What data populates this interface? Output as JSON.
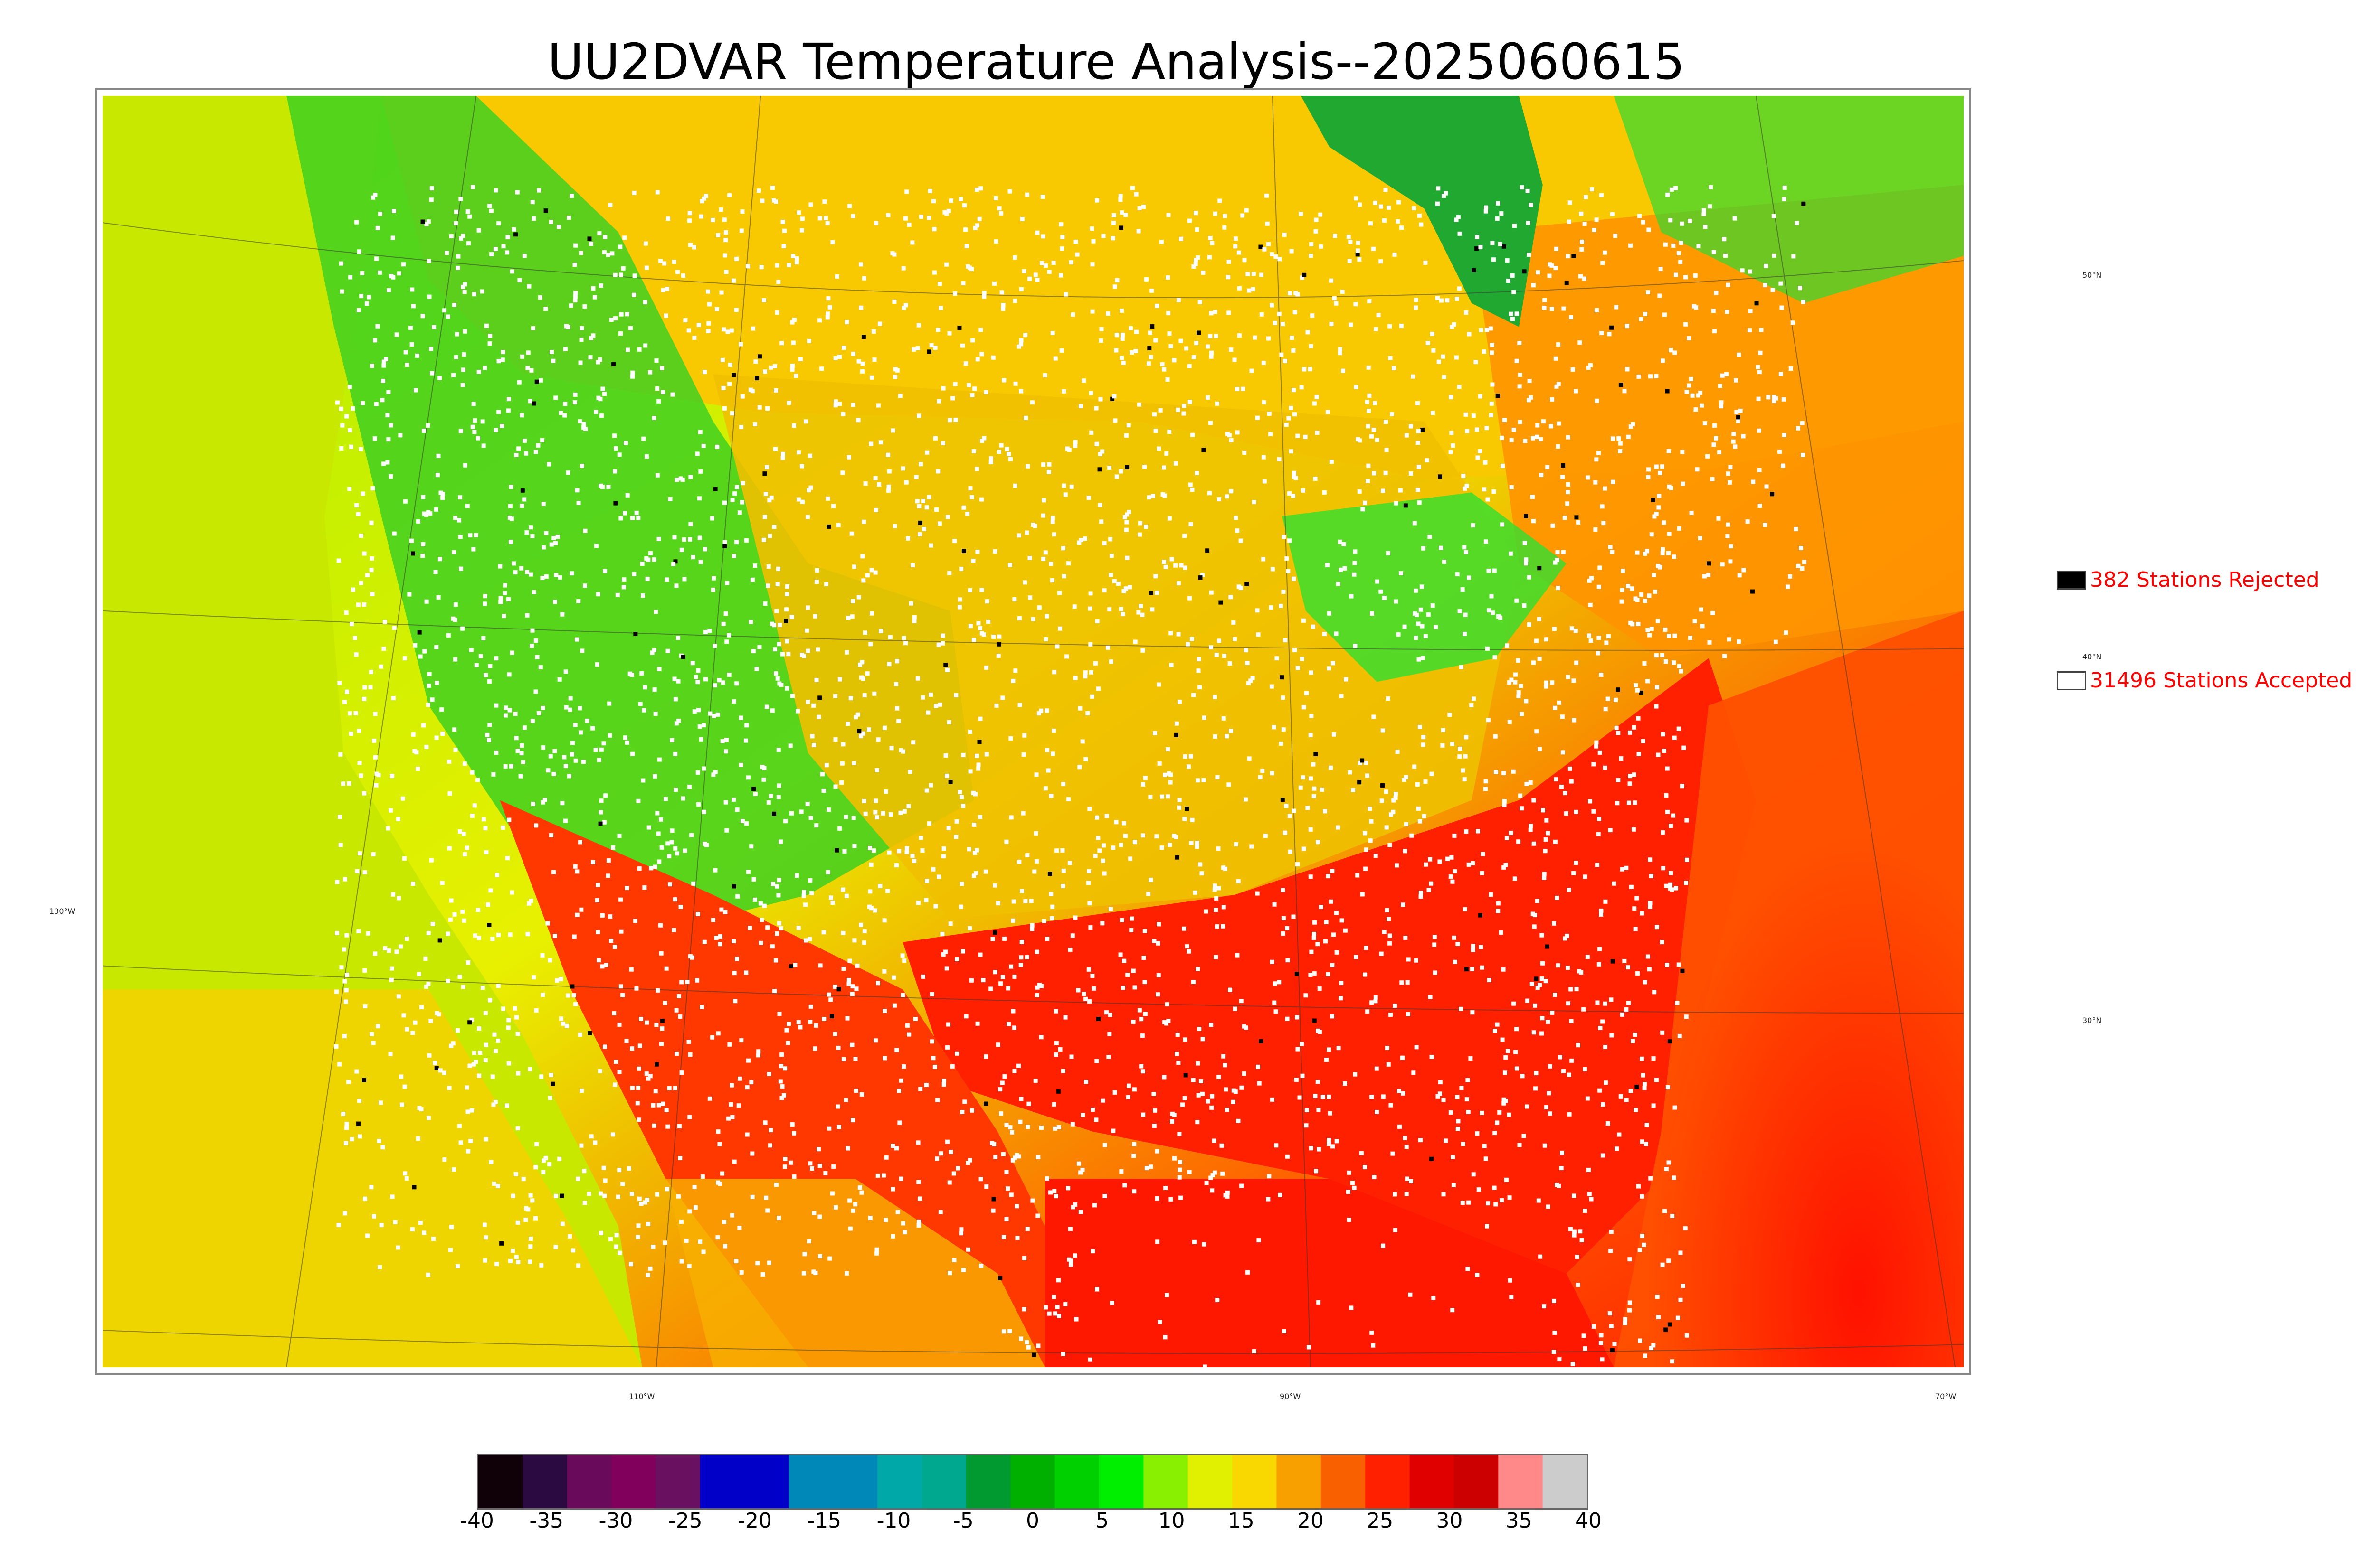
{
  "title": "UU2DVAR Temperature Analysis--2025060615",
  "legend": {
    "rejected": {
      "label": "382 Stations Rejected",
      "color": "#000000"
    },
    "accepted": {
      "label": "31496 Stations Accepted",
      "color": "#ffffff"
    },
    "text_color": "#ff0000"
  },
  "lat_labels": [
    "50°N",
    "40°N",
    "30°N"
  ],
  "lon_labels": [
    "130°W",
    "110°W",
    "90°W",
    "70°W"
  ],
  "colorbar": {
    "ticks": [
      "-40",
      "-35",
      "-30",
      "-25",
      "-20",
      "-15",
      "-10",
      "-5",
      "0",
      "5",
      "10",
      "15",
      "20",
      "25",
      "30",
      "35",
      "40"
    ],
    "colors": [
      "#100008",
      "#2a0a40",
      "#6a0a5a",
      "#80005c",
      "#6a1060",
      "#0000c8",
      "#0000c8",
      "#0088b8",
      "#0088b8",
      "#00a8a8",
      "#00a890",
      "#009a30",
      "#00b000",
      "#00d000",
      "#00ee00",
      "#88f000",
      "#e0f000",
      "#f8d800",
      "#f8a000",
      "#f86000",
      "#ff2000",
      "#e00000",
      "#cc0000",
      "#ff8888",
      "#cccccc"
    ]
  },
  "map_colors": {
    "ocean_pacific": "#c8e800",
    "ocean_south": "#ff4000",
    "gulf": "#ff1800",
    "hudson_bay": "#20a830",
    "canada_north": "#f8d000",
    "canada_east": "#ff9800",
    "rockies": "#40d820",
    "plains": "#f0c000",
    "southeast": "#ff2000",
    "great_lakes": "#30e030"
  }
}
